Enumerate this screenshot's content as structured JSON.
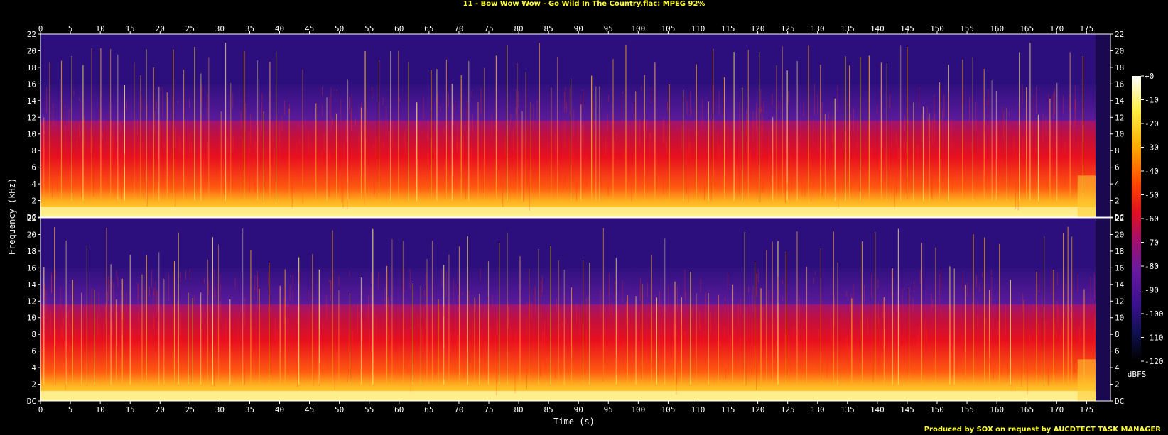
{
  "title": "11 - Bow Wow Wow - Go Wild In The Country.flac: MPEG 92%",
  "credit": "Produced by SOX on request by AUCDTECT TASK MANAGER",
  "chart_data": {
    "type": "heatmap",
    "xlabel": "Time (s)",
    "ylabel": "Frequency (kHz)",
    "colorbar_label": "dBFS",
    "xlim": [
      0,
      179
    ],
    "ylim": [
      0,
      22
    ],
    "channels": 2,
    "x_ticks": [
      "0",
      "5",
      "10",
      "15",
      "20",
      "25",
      "30",
      "35",
      "40",
      "45",
      "50",
      "55",
      "60",
      "65",
      "70",
      "75",
      "80",
      "85",
      "90",
      "95",
      "100",
      "105",
      "110",
      "115",
      "120",
      "125",
      "130",
      "135",
      "140",
      "145",
      "150",
      "155",
      "160",
      "165",
      "170",
      "175"
    ],
    "y_ticks": [
      "DC",
      "2",
      "4",
      "6",
      "8",
      "10",
      "12",
      "14",
      "16",
      "18",
      "20",
      "22"
    ],
    "colorbar_ticks": [
      "+0",
      "-10",
      "-20",
      "-30",
      "-40",
      "-50",
      "-60",
      "-70",
      "-80",
      "-90",
      "-100",
      "-110",
      "-120"
    ],
    "colors": {
      "top": "#ffffee",
      "yellow": "#ffdd22",
      "orange": "#ff8800",
      "red": "#ee1111",
      "purple": "#7a1aa0",
      "blue": "#2e0c7a",
      "bottom": "#000000"
    }
  }
}
